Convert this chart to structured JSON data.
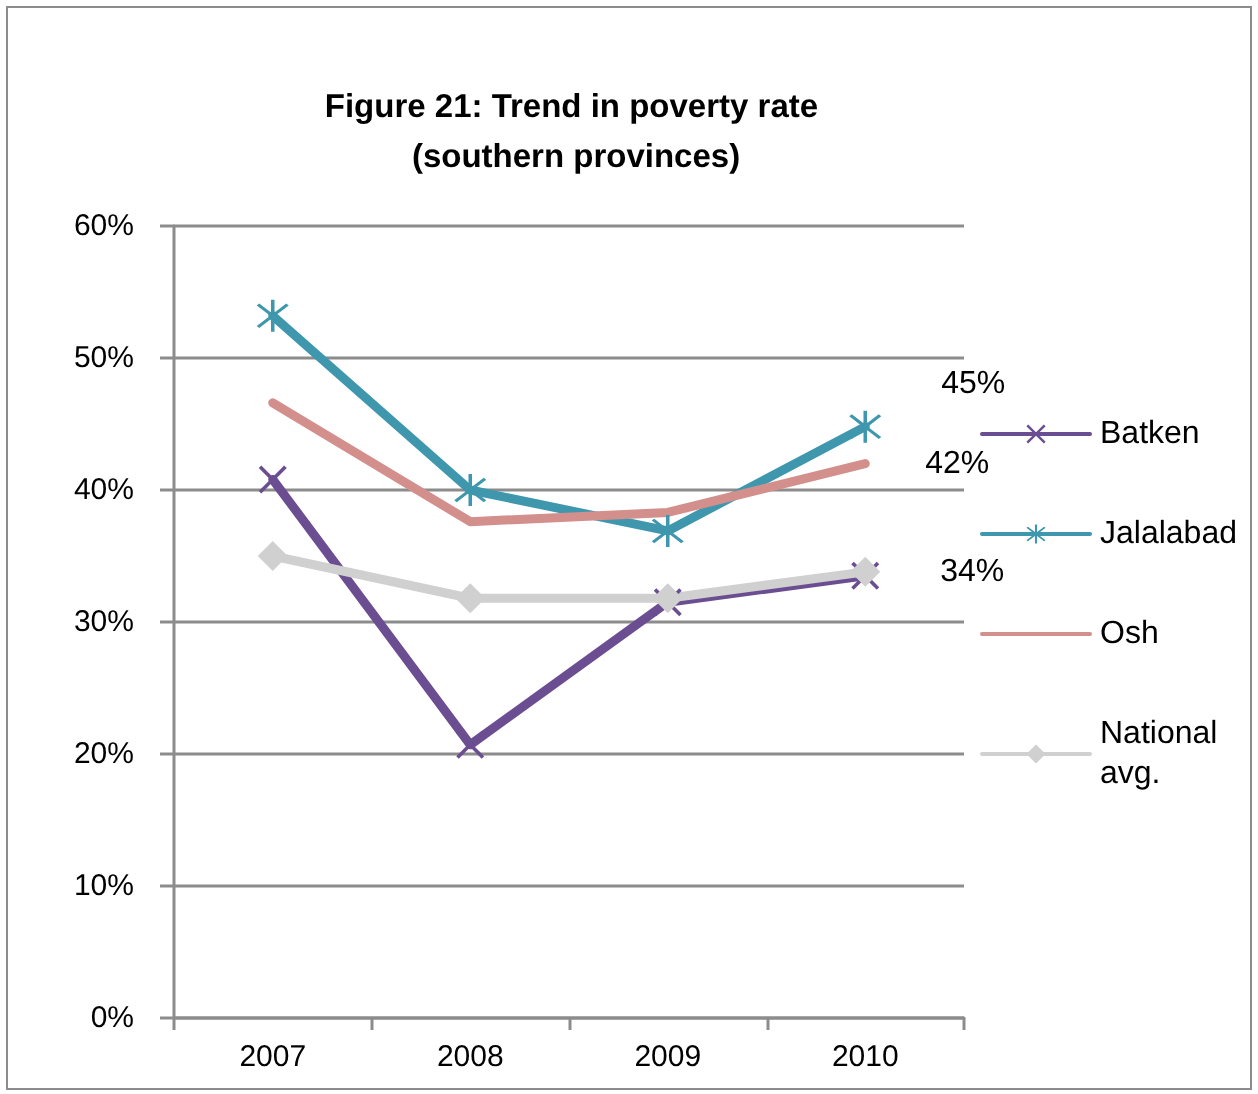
{
  "chart_data": {
    "type": "line",
    "title": "Figure 21: Trend in poverty rate (southern provinces)",
    "categories": [
      "2007",
      "2008",
      "2009",
      "2010"
    ],
    "series": [
      {
        "name": "Batken",
        "color": "#6b4d91",
        "marker": "cross",
        "values": [
          40.8,
          20.7,
          31.5,
          33.5
        ]
      },
      {
        "name": "Jalalabad",
        "color": "#3f97ae",
        "marker": "star",
        "values": [
          53.2,
          40.0,
          36.9,
          44.8
        ],
        "value_labels": [
          null,
          null,
          null,
          "45%"
        ]
      },
      {
        "name": "Osh",
        "color": "#d28f8c",
        "marker": "none",
        "values": [
          46.6,
          37.6,
          38.3,
          42.0
        ],
        "value_labels": [
          null,
          null,
          null,
          "42%"
        ]
      },
      {
        "name": "National avg.",
        "color": "#d0d0d0",
        "marker": "diamond",
        "values": [
          35.0,
          31.8,
          31.8,
          33.8
        ],
        "value_labels": [
          null,
          null,
          null,
          "34%"
        ]
      }
    ],
    "ylim": [
      0,
      60
    ],
    "yticks": [
      {
        "value": 0,
        "label": "0%"
      },
      {
        "value": 10,
        "label": "10%"
      },
      {
        "value": 20,
        "label": "20%"
      },
      {
        "value": 30,
        "label": "30%"
      },
      {
        "value": 40,
        "label": "40%"
      },
      {
        "value": 50,
        "label": "50%"
      },
      {
        "value": 60,
        "label": "60%"
      }
    ],
    "grid": "y",
    "legend": "right"
  }
}
